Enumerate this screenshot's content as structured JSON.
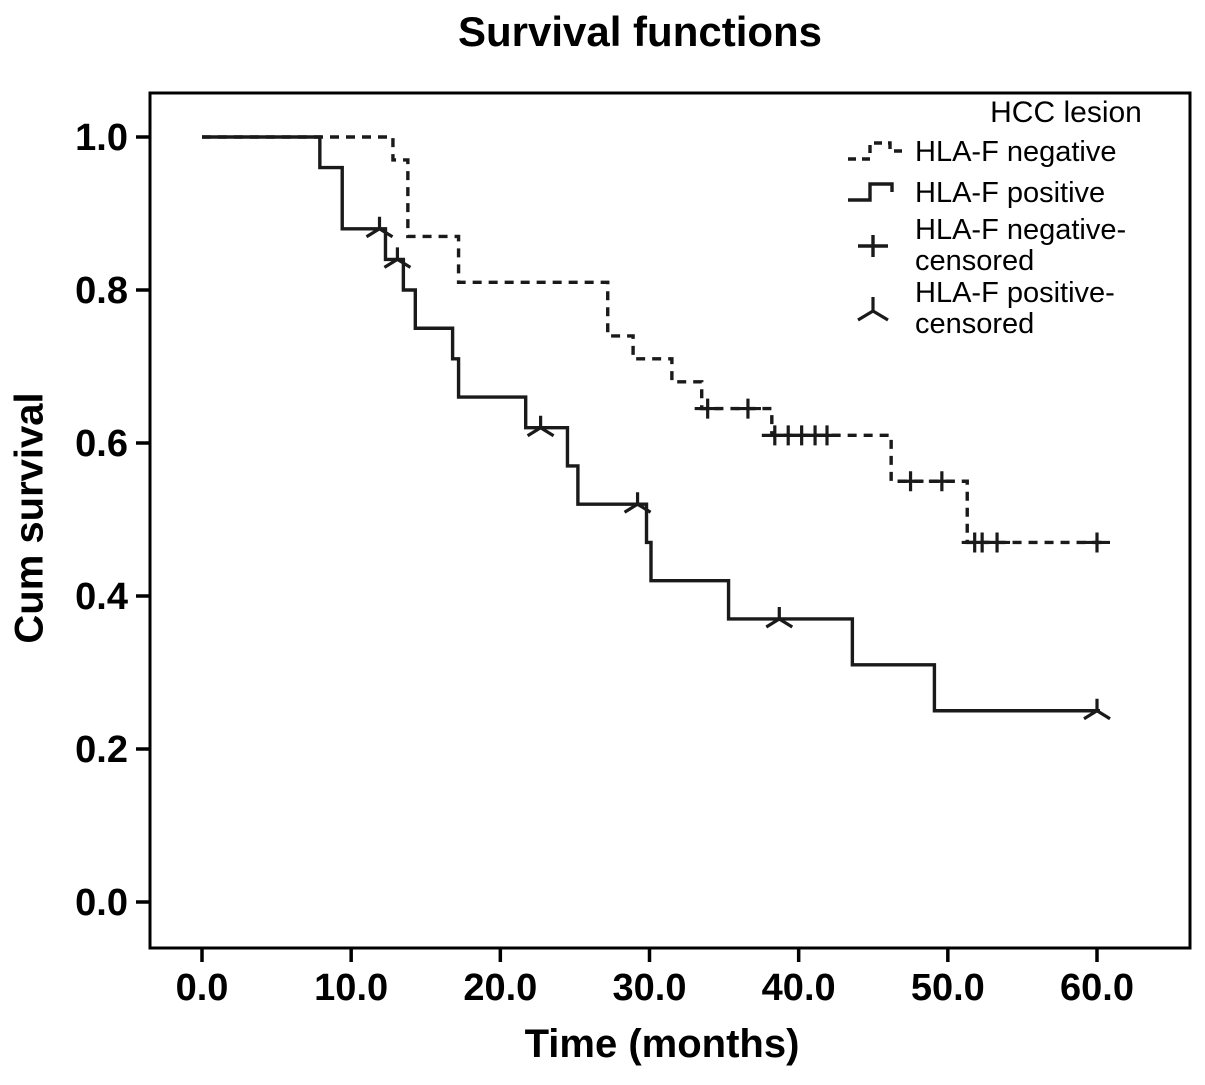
{
  "title": "Survival functions",
  "axes": {
    "x": {
      "label": "Time (months)",
      "ticks": [
        0,
        10,
        20,
        30,
        40,
        50,
        60
      ],
      "tick_labels": [
        "0.0",
        "10.0",
        "20.0",
        "30.0",
        "40.0",
        "50.0",
        "60.0"
      ]
    },
    "y": {
      "label": "Cum survival",
      "ticks": [
        0.0,
        0.2,
        0.4,
        0.6,
        0.8,
        1.0
      ],
      "tick_labels": [
        "0.0",
        "0.2",
        "0.4",
        "0.6",
        "0.8",
        "1.0"
      ]
    }
  },
  "legend": {
    "title": "HCC lesion",
    "entries": [
      {
        "label": "HLA-F negative",
        "marker": "dashed-step-line"
      },
      {
        "label": "HLA-F positive",
        "marker": "solid-step-line"
      },
      {
        "label": "HLA-F negative-\ncensored",
        "marker": "plus"
      },
      {
        "label": "HLA-F positive-\ncensored",
        "marker": "tri"
      }
    ]
  },
  "chart_data": {
    "type": "line",
    "subtype": "kaplan-meier-step",
    "title": "Survival functions",
    "xlabel": "Time (months)",
    "ylabel": "Cum survival",
    "xlim": [
      -3.5,
      66.2
    ],
    "ylim": [
      -0.06,
      1.06
    ],
    "grid": false,
    "legend_position": "upper-right-inside",
    "series": [
      {
        "name": "HLA-F negative",
        "line_style": "dashed",
        "marker": "plus",
        "end_time": 60.3,
        "steps": [
          [
            0,
            1.0
          ],
          [
            12.8,
            0.97
          ],
          [
            13.8,
            0.87
          ],
          [
            17.2,
            0.81
          ],
          [
            27.2,
            0.74
          ],
          [
            28.9,
            0.71
          ],
          [
            31.5,
            0.68
          ],
          [
            33.5,
            0.645
          ],
          [
            38.2,
            0.61
          ],
          [
            46.2,
            0.55
          ],
          [
            51.3,
            0.47
          ]
        ],
        "censored": [
          [
            33.9,
            0.645
          ],
          [
            36.6,
            0.645
          ],
          [
            38.4,
            0.61
          ],
          [
            39.3,
            0.61
          ],
          [
            40.2,
            0.61
          ],
          [
            41.1,
            0.61
          ],
          [
            41.9,
            0.61
          ],
          [
            47.5,
            0.55
          ],
          [
            49.6,
            0.55
          ],
          [
            51.8,
            0.47
          ],
          [
            52.3,
            0.47
          ],
          [
            53.3,
            0.47
          ],
          [
            60.0,
            0.47
          ]
        ]
      },
      {
        "name": "HLA-F positive",
        "line_style": "solid",
        "marker": "tri",
        "end_time": 60.2,
        "steps": [
          [
            0,
            1.0
          ],
          [
            7.9,
            0.96
          ],
          [
            9.4,
            0.88
          ],
          [
            12.3,
            0.84
          ],
          [
            13.5,
            0.8
          ],
          [
            14.3,
            0.75
          ],
          [
            16.8,
            0.71
          ],
          [
            17.2,
            0.66
          ],
          [
            21.7,
            0.62
          ],
          [
            24.5,
            0.57
          ],
          [
            25.2,
            0.52
          ],
          [
            29.8,
            0.47
          ],
          [
            30.1,
            0.42
          ],
          [
            35.3,
            0.37
          ],
          [
            43.6,
            0.31
          ],
          [
            49.1,
            0.25
          ]
        ],
        "censored": [
          [
            11.9,
            0.88
          ],
          [
            13.1,
            0.84
          ],
          [
            22.7,
            0.62
          ],
          [
            29.2,
            0.52
          ],
          [
            38.7,
            0.37
          ],
          [
            60.0,
            0.25
          ]
        ]
      }
    ],
    "line_color": "#1a1a1a"
  }
}
